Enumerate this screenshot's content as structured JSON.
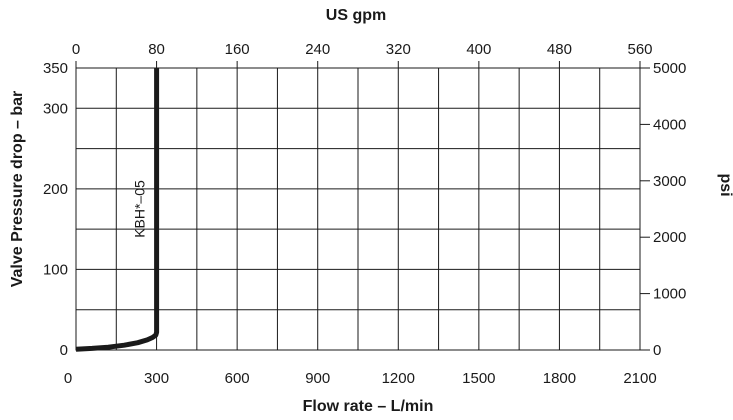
{
  "chart_data": {
    "type": "line",
    "title": "",
    "xlabel": "Flow rate – L/min",
    "ylabel": "Valve Pressure drop – bar",
    "x2label": "US gpm",
    "y2label": "psi",
    "xlim": [
      0,
      2100
    ],
    "ylim": [
      0,
      350
    ],
    "x2lim": [
      0,
      560
    ],
    "y2lim": [
      0,
      5000
    ],
    "x_ticks": [
      300,
      600,
      900,
      1200,
      1500,
      1800,
      2100
    ],
    "x_tick_labels": [
      "300",
      "600",
      "900",
      "1200",
      "1500",
      "1800",
      "2100"
    ],
    "x_origin_label": "0",
    "y_ticks": [
      0,
      100,
      200,
      300,
      350
    ],
    "y_tick_labels": [
      "0",
      "100",
      "200",
      "300",
      "350"
    ],
    "x2_ticks": [
      0,
      80,
      160,
      240,
      320,
      400,
      480,
      560
    ],
    "x2_tick_labels": [
      "0",
      "80",
      "160",
      "240",
      "320",
      "400",
      "480",
      "560"
    ],
    "y2_ticks": [
      0,
      1000,
      2000,
      3000,
      4000,
      5000
    ],
    "y2_tick_labels": [
      "0",
      "1000",
      "2000",
      "3000",
      "4000",
      "5000"
    ],
    "x_grid_step": 150,
    "y_grid_step": 50,
    "grid": true,
    "color": "#1a1a1a",
    "series": [
      {
        "name": "KBH*–05",
        "x": [
          0,
          60,
          120,
          180,
          230,
          265,
          285,
          297,
          300,
          300
        ],
        "y": [
          1,
          2,
          3.5,
          6,
          9,
          12.5,
          15.5,
          18.5,
          22,
          350
        ]
      }
    ]
  }
}
